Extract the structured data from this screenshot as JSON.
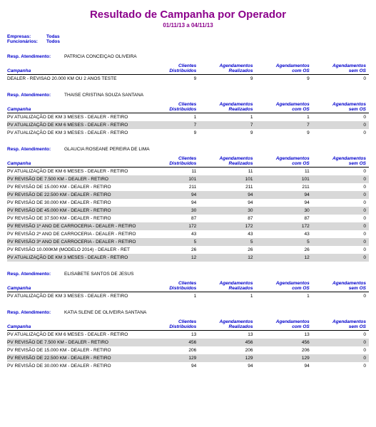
{
  "title": "Resultado de Campanha por Operador",
  "date_range": "01/11/13  a  04/11/13",
  "filters": {
    "empresas_label": "Empresas:",
    "empresas_value": "Todas",
    "funcionarios_label": "Funcionários:",
    "funcionarios_value": "Todos"
  },
  "resp_label": "Resp. Atendimento:",
  "columns": {
    "campanha": "Campanha",
    "c1a": "Clientes",
    "c1b": "Distribuídos",
    "c2a": "Agendamentos",
    "c2b": "Realizados",
    "c3a": "Agendamentos",
    "c3b": "com OS",
    "c4a": "Agendamentos",
    "c4b": "sem OS"
  },
  "sections": [
    {
      "resp": "PATRICIA CONCEIÇAO OLIVEIRA",
      "rows": [
        {
          "c": "DEALER  - REVISAO 20.000 KM OU 2 ANOS TESTE",
          "v": [
            9,
            9,
            9,
            0
          ],
          "alt": false
        }
      ]
    },
    {
      "resp": "THAISE CRISTINA SOUZA  SANTANA",
      "rows": [
        {
          "c": "PV ATUALIZAÇÃO DE KM 3 MESES - DEALER - RETIRO",
          "v": [
            1,
            1,
            1,
            0
          ],
          "alt": false
        },
        {
          "c": "PV ATUALIZAÇÃO DE KM 6 MESES - DEALER - RETIRO",
          "v": [
            7,
            7,
            7,
            0
          ],
          "alt": true
        },
        {
          "c": "PV ATUALIZAÇÃO DE KM 3 MESES - DEALER - RETIRO",
          "v": [
            9,
            9,
            9,
            0
          ],
          "alt": false
        }
      ]
    },
    {
      "resp": "GLAUCIA ROSEANE PEREIRA DE LIMA",
      "rows": [
        {
          "c": "PV ATUALIZAÇÃO DE KM 6 MESES - DEALER - RETIRO",
          "v": [
            11,
            11,
            11,
            0
          ],
          "alt": false
        },
        {
          "c": "PV REVISÃO DE 7.500 KM - DEALER - RETIRO",
          "v": [
            101,
            101,
            101,
            0
          ],
          "alt": true
        },
        {
          "c": "PV REVISÃO DE 15.000 KM - DEALER - RETIRO",
          "v": [
            211,
            211,
            211,
            0
          ],
          "alt": false
        },
        {
          "c": "PV REVISÃO DE 22.500 KM - DEALER - RETIRO",
          "v": [
            94,
            94,
            94,
            0
          ],
          "alt": true
        },
        {
          "c": "PV REVISÃO DE 30.000 KM - DEALER - RETIRO",
          "v": [
            94,
            94,
            94,
            0
          ],
          "alt": false
        },
        {
          "c": "PV REVISÃO DE 45.000 KM - DEALER - RETIRO",
          "v": [
            30,
            30,
            30,
            0
          ],
          "alt": true
        },
        {
          "c": "PV REVISÃO DE 37.500 KM - DEALER - RETIRO",
          "v": [
            87,
            87,
            87,
            0
          ],
          "alt": false
        },
        {
          "c": "PV REVISÃO 1º ANO DE CARROCERIA - DEALER - RETIRO",
          "v": [
            172,
            172,
            172,
            0
          ],
          "alt": true
        },
        {
          "c": "PV REVISÃO 2º ANO DE CARROCERIA - DEALER - RETIRO",
          "v": [
            43,
            43,
            43,
            0
          ],
          "alt": false
        },
        {
          "c": "PV REVISÃO 3º ANO DE CARROCERIA - DEALER - RETIRO",
          "v": [
            5,
            5,
            5,
            0
          ],
          "alt": true
        },
        {
          "c": "PV REVISÃO 10.000KM (MODELO 2014) - DEALER - RET",
          "v": [
            26,
            26,
            26,
            0
          ],
          "alt": false
        },
        {
          "c": "PV ATUALIZAÇÃO DE KM 3 MESES - DEALER - RETIRO",
          "v": [
            12,
            12,
            12,
            0
          ],
          "alt": true
        }
      ]
    },
    {
      "resp": "ELISABETE SANTOS DE JESUS",
      "rows": [
        {
          "c": "PV ATUALIZAÇÃO DE KM 3 MESES - DEALER - RETIRO",
          "v": [
            1,
            1,
            1,
            0
          ],
          "alt": false
        }
      ]
    },
    {
      "resp": "KATIA SLENE DE OLIVEIRA SANTANA",
      "rows": [
        {
          "c": "PV ATUALIZAÇÃO DE KM 6 MESES - DEALER - RETIRO",
          "v": [
            13,
            13,
            13,
            0
          ],
          "alt": false
        },
        {
          "c": "PV REVISÃO DE 7.500 KM - DEALER - RETIRO",
          "v": [
            456,
            456,
            456,
            0
          ],
          "alt": true
        },
        {
          "c": "PV REVISÃO DE 15.000 KM - DEALER - RETIRO",
          "v": [
            206,
            206,
            206,
            0
          ],
          "alt": false
        },
        {
          "c": "PV REVISÃO DE 22.500 KM - DEALER - RETIRO",
          "v": [
            129,
            129,
            129,
            0
          ],
          "alt": true
        },
        {
          "c": "PV REVISÃO DE 30.000 KM - DEALER - RETIRO",
          "v": [
            94,
            94,
            94,
            0
          ],
          "alt": false
        }
      ]
    }
  ]
}
